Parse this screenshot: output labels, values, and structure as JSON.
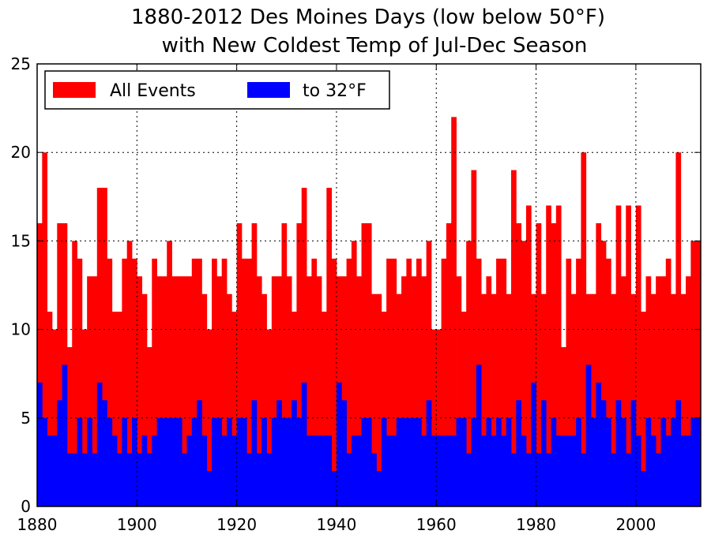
{
  "chart_data": {
    "type": "bar",
    "title": [
      "1880-2012 Des Moines Days (low below 50°F)",
      "with New Coldest Temp of Jul-Dec Season"
    ],
    "xlabel": "",
    "ylabel": "",
    "xlim": [
      1880,
      2013
    ],
    "ylim": [
      0,
      25
    ],
    "x_ticks": [
      1880,
      1900,
      1920,
      1940,
      1960,
      1980,
      2000
    ],
    "y_ticks": [
      0,
      5,
      10,
      15,
      20,
      25
    ],
    "grid": true,
    "legend_position": "top-left",
    "x": [
      1880,
      1881,
      1882,
      1883,
      1884,
      1885,
      1886,
      1887,
      1888,
      1889,
      1890,
      1891,
      1892,
      1893,
      1894,
      1895,
      1896,
      1897,
      1898,
      1899,
      1900,
      1901,
      1902,
      1903,
      1904,
      1905,
      1906,
      1907,
      1908,
      1909,
      1910,
      1911,
      1912,
      1913,
      1914,
      1915,
      1916,
      1917,
      1918,
      1919,
      1920,
      1921,
      1922,
      1923,
      1924,
      1925,
      1926,
      1927,
      1928,
      1929,
      1930,
      1931,
      1932,
      1933,
      1934,
      1935,
      1936,
      1937,
      1938,
      1939,
      1940,
      1941,
      1942,
      1943,
      1944,
      1945,
      1946,
      1947,
      1948,
      1949,
      1950,
      1951,
      1952,
      1953,
      1954,
      1955,
      1956,
      1957,
      1958,
      1959,
      1960,
      1961,
      1962,
      1963,
      1964,
      1965,
      1966,
      1967,
      1968,
      1969,
      1970,
      1971,
      1972,
      1973,
      1974,
      1975,
      1976,
      1977,
      1978,
      1979,
      1980,
      1981,
      1982,
      1983,
      1984,
      1985,
      1986,
      1987,
      1988,
      1989,
      1990,
      1991,
      1992,
      1993,
      1994,
      1995,
      1996,
      1997,
      1998,
      1999,
      2000,
      2001,
      2002,
      2003,
      2004,
      2005,
      2006,
      2007,
      2008,
      2009,
      2010,
      2011,
      2012
    ],
    "series": [
      {
        "name": "All Events",
        "color": "#ff0000",
        "values": [
          16,
          20,
          11,
          10,
          16,
          16,
          9,
          15,
          14,
          10,
          13,
          13,
          18,
          18,
          14,
          11,
          11,
          14,
          15,
          14,
          13,
          12,
          9,
          14,
          13,
          13,
          15,
          13,
          13,
          13,
          13,
          14,
          14,
          12,
          10,
          14,
          13,
          14,
          12,
          11,
          16,
          14,
          14,
          16,
          13,
          12,
          10,
          13,
          13,
          16,
          13,
          11,
          16,
          18,
          13,
          14,
          13,
          11,
          18,
          14,
          13,
          13,
          14,
          15,
          13,
          16,
          16,
          12,
          12,
          11,
          14,
          14,
          12,
          13,
          14,
          13,
          14,
          13,
          15,
          10,
          10,
          14,
          16,
          22,
          13,
          11,
          15,
          19,
          14,
          12,
          13,
          12,
          14,
          14,
          12,
          19,
          16,
          15,
          17,
          12,
          16,
          12,
          17,
          16,
          17,
          9,
          14,
          12,
          14,
          20,
          12,
          12,
          16,
          15,
          14,
          12,
          17,
          13,
          17,
          12,
          17,
          11,
          13,
          12,
          13,
          13,
          14,
          12,
          20,
          12,
          13,
          15,
          15
        ]
      },
      {
        "name": "to 32°F",
        "color": "#0000ff",
        "values": [
          7,
          5,
          4,
          4,
          6,
          8,
          3,
          3,
          5,
          3,
          5,
          3,
          7,
          6,
          5,
          4,
          3,
          5,
          3,
          5,
          3,
          4,
          3,
          4,
          5,
          5,
          5,
          5,
          5,
          3,
          4,
          5,
          6,
          4,
          2,
          5,
          5,
          4,
          5,
          4,
          5,
          5,
          3,
          6,
          3,
          5,
          3,
          5,
          6,
          5,
          5,
          6,
          5,
          7,
          4,
          4,
          4,
          4,
          4,
          2,
          7,
          6,
          3,
          4,
          4,
          5,
          5,
          3,
          2,
          5,
          4,
          4,
          5,
          5,
          5,
          5,
          5,
          4,
          6,
          4,
          4,
          4,
          4,
          4,
          5,
          5,
          3,
          5,
          8,
          4,
          5,
          4,
          5,
          4,
          5,
          3,
          6,
          4,
          3,
          7,
          3,
          6,
          3,
          5,
          4,
          4,
          4,
          4,
          5,
          3,
          8,
          5,
          7,
          6,
          5,
          3,
          6,
          5,
          3,
          6,
          4,
          2,
          5,
          4,
          3,
          5,
          4,
          5,
          6,
          4,
          4,
          5,
          5
        ]
      }
    ]
  }
}
